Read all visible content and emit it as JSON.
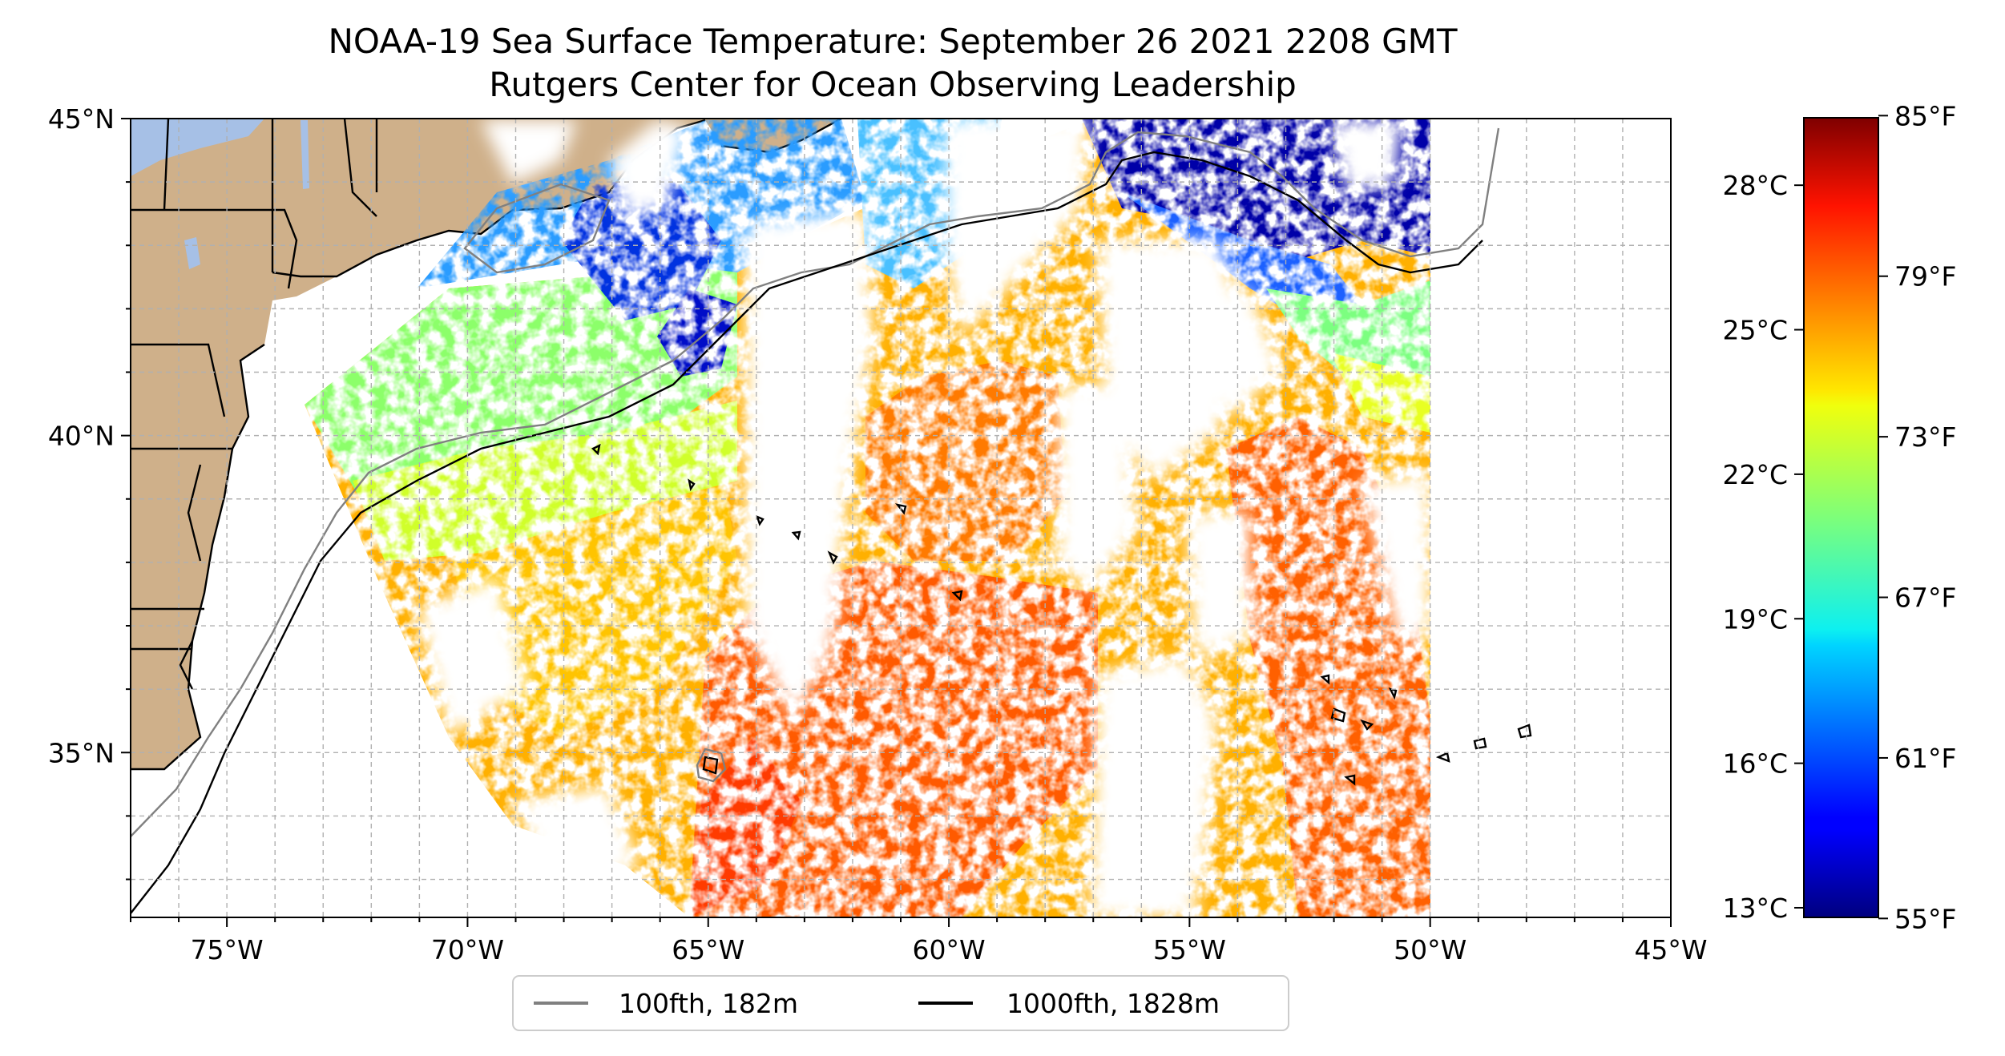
{
  "title": {
    "line1": "NOAA-19 Sea Surface Temperature: September 26 2021 2208 GMT",
    "line2": "Rutgers Center for Ocean Observing Leadership"
  },
  "map": {
    "projection": "PlateCarree",
    "lon_range": [
      -77,
      -45
    ],
    "lat_range": [
      32.4,
      45
    ],
    "lon_ticks": [
      {
        "value": -75,
        "label": "75°W"
      },
      {
        "value": -70,
        "label": "70°W"
      },
      {
        "value": -65,
        "label": "65°W"
      },
      {
        "value": -60,
        "label": "60°W"
      },
      {
        "value": -55,
        "label": "55°W"
      },
      {
        "value": -50,
        "label": "50°W"
      },
      {
        "value": -45,
        "label": "45°W"
      }
    ],
    "lat_ticks": [
      {
        "value": 45,
        "label": "45°N"
      },
      {
        "value": 40,
        "label": "40°N"
      },
      {
        "value": 35,
        "label": "35°N"
      }
    ],
    "gridlines": true,
    "land_color": "#cfb08a",
    "lake_color": "#a6c0e6"
  },
  "colorbar": {
    "colormap": "jet",
    "range_c": [
      12.8,
      29.4
    ],
    "celsius_ticks": [
      {
        "value": 28,
        "label": "28°C"
      },
      {
        "value": 25,
        "label": "25°C"
      },
      {
        "value": 22,
        "label": "22°C"
      },
      {
        "value": 19,
        "label": "19°C"
      },
      {
        "value": 16,
        "label": "16°C"
      },
      {
        "value": 13,
        "label": "13°C"
      }
    ],
    "fahrenheit_ticks": [
      {
        "value": 85,
        "label": "85°F"
      },
      {
        "value": 79,
        "label": "79°F"
      },
      {
        "value": 73,
        "label": "73°F"
      },
      {
        "value": 67,
        "label": "67°F"
      },
      {
        "value": 61,
        "label": "61°F"
      },
      {
        "value": 55,
        "label": "55°F"
      }
    ]
  },
  "legend": {
    "placement": "bottom-center",
    "items": [
      {
        "label": "100fth, 182m",
        "color": "#808080"
      },
      {
        "label": "1000fth, 1828m",
        "color": "#000000"
      }
    ]
  }
}
